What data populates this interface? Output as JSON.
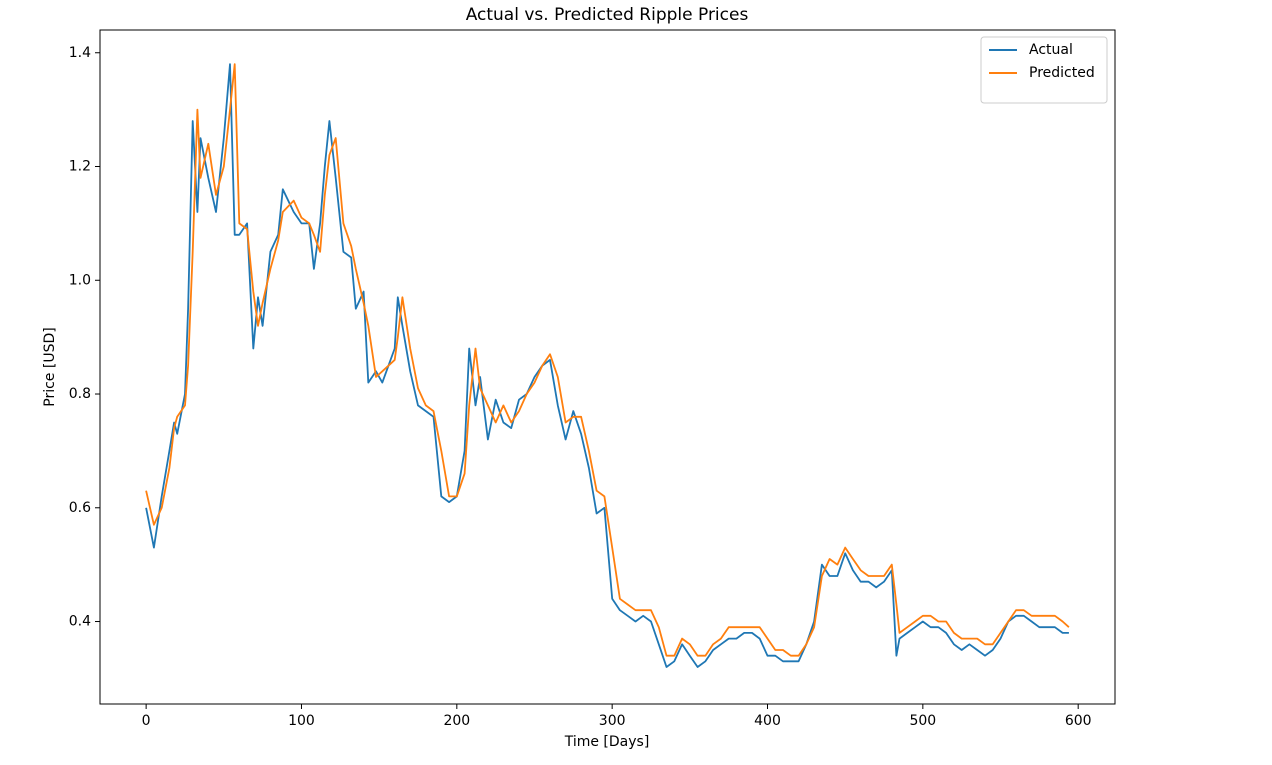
{
  "chart_data": {
    "type": "line",
    "title": "Actual vs. Predicted Ripple Prices",
    "x_label": "Time [Days]",
    "y_label": "Price [USD]",
    "x": [
      0,
      5,
      10,
      15,
      18,
      20,
      25,
      27,
      30,
      33,
      35,
      40,
      45,
      50,
      54,
      57,
      60,
      65,
      69,
      72,
      75,
      80,
      85,
      88,
      95,
      100,
      105,
      108,
      112,
      115,
      118,
      122,
      127,
      132,
      135,
      140,
      143,
      148,
      152,
      160,
      162,
      165,
      170,
      175,
      180,
      185,
      190,
      195,
      200,
      205,
      208,
      212,
      215,
      220,
      225,
      230,
      235,
      240,
      245,
      250,
      255,
      260,
      265,
      270,
      275,
      280,
      285,
      290,
      295,
      300,
      305,
      310,
      315,
      320,
      325,
      330,
      335,
      340,
      345,
      350,
      355,
      360,
      365,
      370,
      375,
      380,
      385,
      390,
      395,
      400,
      405,
      410,
      415,
      420,
      425,
      430,
      435,
      440,
      445,
      450,
      455,
      460,
      465,
      470,
      475,
      480,
      483,
      485,
      490,
      495,
      500,
      505,
      510,
      515,
      520,
      525,
      530,
      535,
      540,
      545,
      550,
      555,
      560,
      565,
      570,
      575,
      580,
      585,
      590,
      594
    ],
    "series": [
      {
        "name": "Actual",
        "color": "#1f77b4",
        "values": [
          0.6,
          0.53,
          0.62,
          0.7,
          0.75,
          0.73,
          0.8,
          0.95,
          1.28,
          1.12,
          1.25,
          1.18,
          1.12,
          1.25,
          1.38,
          1.08,
          1.08,
          1.1,
          0.88,
          0.97,
          0.92,
          1.05,
          1.08,
          1.16,
          1.12,
          1.1,
          1.1,
          1.02,
          1.1,
          1.2,
          1.28,
          1.18,
          1.05,
          1.04,
          0.95,
          0.98,
          0.82,
          0.84,
          0.82,
          0.88,
          0.97,
          0.92,
          0.84,
          0.78,
          0.77,
          0.76,
          0.62,
          0.61,
          0.62,
          0.7,
          0.88,
          0.78,
          0.83,
          0.72,
          0.79,
          0.75,
          0.74,
          0.79,
          0.8,
          0.83,
          0.85,
          0.86,
          0.78,
          0.72,
          0.77,
          0.73,
          0.67,
          0.59,
          0.6,
          0.44,
          0.42,
          0.41,
          0.4,
          0.41,
          0.4,
          0.36,
          0.32,
          0.33,
          0.36,
          0.34,
          0.32,
          0.33,
          0.35,
          0.36,
          0.37,
          0.37,
          0.38,
          0.38,
          0.37,
          0.34,
          0.34,
          0.33,
          0.33,
          0.33,
          0.36,
          0.4,
          0.5,
          0.48,
          0.48,
          0.52,
          0.49,
          0.47,
          0.47,
          0.46,
          0.47,
          0.49,
          0.34,
          0.37,
          0.38,
          0.39,
          0.4,
          0.39,
          0.39,
          0.38,
          0.36,
          0.35,
          0.36,
          0.35,
          0.34,
          0.35,
          0.37,
          0.4,
          0.41,
          0.41,
          0.4,
          0.39,
          0.39,
          0.39,
          0.38,
          0.38
        ]
      },
      {
        "name": "Predicted",
        "color": "#ff7f0e",
        "values": [
          0.63,
          0.57,
          0.6,
          0.67,
          0.74,
          0.76,
          0.78,
          0.85,
          1.05,
          1.3,
          1.18,
          1.24,
          1.15,
          1.2,
          1.3,
          1.38,
          1.1,
          1.09,
          0.98,
          0.92,
          0.96,
          1.02,
          1.07,
          1.12,
          1.14,
          1.11,
          1.1,
          1.08,
          1.05,
          1.15,
          1.22,
          1.25,
          1.1,
          1.06,
          1.02,
          0.96,
          0.92,
          0.83,
          0.84,
          0.86,
          0.9,
          0.97,
          0.88,
          0.81,
          0.78,
          0.77,
          0.7,
          0.62,
          0.62,
          0.66,
          0.78,
          0.88,
          0.81,
          0.78,
          0.75,
          0.78,
          0.75,
          0.77,
          0.8,
          0.82,
          0.85,
          0.87,
          0.83,
          0.75,
          0.76,
          0.76,
          0.7,
          0.63,
          0.62,
          0.53,
          0.44,
          0.43,
          0.42,
          0.42,
          0.42,
          0.39,
          0.34,
          0.34,
          0.37,
          0.36,
          0.34,
          0.34,
          0.36,
          0.37,
          0.39,
          0.39,
          0.39,
          0.39,
          0.39,
          0.37,
          0.35,
          0.35,
          0.34,
          0.34,
          0.36,
          0.39,
          0.48,
          0.51,
          0.5,
          0.53,
          0.51,
          0.49,
          0.48,
          0.48,
          0.48,
          0.5,
          0.43,
          0.38,
          0.39,
          0.4,
          0.41,
          0.41,
          0.4,
          0.4,
          0.38,
          0.37,
          0.37,
          0.37,
          0.36,
          0.36,
          0.38,
          0.4,
          0.42,
          0.42,
          0.41,
          0.41,
          0.41,
          0.41,
          0.4,
          0.39
        ]
      }
    ],
    "xlim": [
      -29.7,
      623.7
    ],
    "ylim": [
      0.255,
      1.44
    ],
    "xticks": [
      0,
      100,
      200,
      300,
      400,
      500,
      600
    ],
    "yticks": [
      {
        "value": 0.4,
        "label": "0.4"
      },
      {
        "value": 0.6,
        "label": "0.6"
      },
      {
        "value": 0.8,
        "label": "0.8"
      },
      {
        "value": 1.0,
        "label": "1.0"
      },
      {
        "value": 1.2,
        "label": "1.2"
      },
      {
        "value": 1.4,
        "label": "1.4"
      }
    ],
    "grid": false,
    "legend": "upper right"
  }
}
